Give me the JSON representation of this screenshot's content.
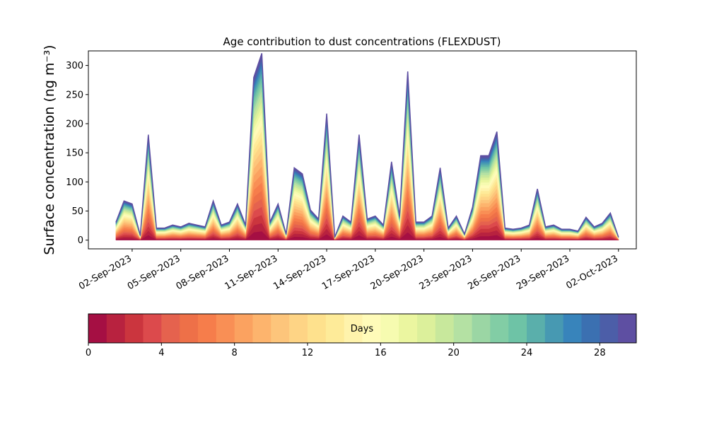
{
  "chart_data": {
    "type": "area",
    "stacked": true,
    "title": "Age contribution to dust concentrations (FLEXDUST)",
    "ylabel": "Surface concentration (ng m⁻³)",
    "xlabel": "",
    "ylim": [
      -15,
      325
    ],
    "yticks": [
      0,
      50,
      100,
      150,
      200,
      250,
      300
    ],
    "xlim_days": [
      -1.7,
      32.1
    ],
    "xticks": [
      {
        "day": 1,
        "label": "02-Sep-2023"
      },
      {
        "day": 4,
        "label": "05-Sep-2023"
      },
      {
        "day": 7,
        "label": "08-Sep-2023"
      },
      {
        "day": 10,
        "label": "11-Sep-2023"
      },
      {
        "day": 13,
        "label": "14-Sep-2023"
      },
      {
        "day": 16,
        "label": "17-Sep-2023"
      },
      {
        "day": 19,
        "label": "20-Sep-2023"
      },
      {
        "day": 22,
        "label": "23-Sep-2023"
      },
      {
        "day": 25,
        "label": "26-Sep-2023"
      },
      {
        "day": 28,
        "label": "29-Sep-2023"
      },
      {
        "day": 31,
        "label": "02-Oct-2023"
      }
    ],
    "x_day_of_sept": [
      0,
      0.5,
      1,
      1.5,
      2,
      2.5,
      3,
      3.5,
      4,
      4.5,
      5,
      5.5,
      6,
      6.5,
      7,
      7.5,
      8,
      8.5,
      9,
      9.5,
      10,
      10.5,
      11,
      11.5,
      12,
      12.5,
      13,
      13.5,
      14,
      14.5,
      15,
      15.5,
      16,
      16.5,
      17,
      17.5,
      18,
      18.5,
      19,
      19.5,
      20,
      20.5,
      21,
      21.5,
      22,
      22.5,
      23,
      23.5,
      24,
      24.5,
      25,
      25.5,
      26,
      26.5,
      27,
      27.5,
      28,
      28.5,
      29,
      29.5,
      30,
      30.5,
      31
    ],
    "total_concentration": [
      30,
      65,
      60,
      8,
      175,
      20,
      20,
      25,
      22,
      28,
      25,
      22,
      65,
      25,
      30,
      60,
      25,
      270,
      310,
      30,
      60,
      10,
      120,
      110,
      50,
      35,
      210,
      5,
      40,
      30,
      175,
      35,
      40,
      25,
      130,
      40,
      280,
      30,
      30,
      40,
      120,
      20,
      40,
      10,
      55,
      140,
      140,
      180,
      20,
      18,
      20,
      25,
      85,
      22,
      25,
      18,
      18,
      15,
      38,
      22,
      28,
      45,
      5
    ],
    "age_fraction_by_day": [
      0.05,
      0.045,
      0.045,
      0.045,
      0.045,
      0.045,
      0.045,
      0.045,
      0.045,
      0.045,
      0.04,
      0.04,
      0.035,
      0.035,
      0.035,
      0.035,
      0.035,
      0.03,
      0.03,
      0.03,
      0.03,
      0.025,
      0.025,
      0.025,
      0.025,
      0.025,
      0.02,
      0.02,
      0.02,
      0.02
    ],
    "colorbar": {
      "label": "Days",
      "range": [
        0,
        30
      ],
      "ticks": [
        0,
        4,
        8,
        12,
        16,
        20,
        24,
        28
      ],
      "colors": [
        "#a50f43",
        "#b8223f",
        "#cb353e",
        "#dc4a4c",
        "#e5624e",
        "#ee7048",
        "#f67d4b",
        "#f98f55",
        "#fba260",
        "#fdb46d",
        "#fdc57b",
        "#fed485",
        "#fee18d",
        "#feeb99",
        "#fff3ac",
        "#fffbb9",
        "#f6fbb0",
        "#ebf6a0",
        "#dcf09b",
        "#c8e89c",
        "#b4e1a3",
        "#9bd6a4",
        "#82cda5",
        "#6ec3a6",
        "#5aafab",
        "#4799b2",
        "#3884bb",
        "#3b70b1",
        "#4c5ea8",
        "#5e4fa2"
      ]
    }
  }
}
